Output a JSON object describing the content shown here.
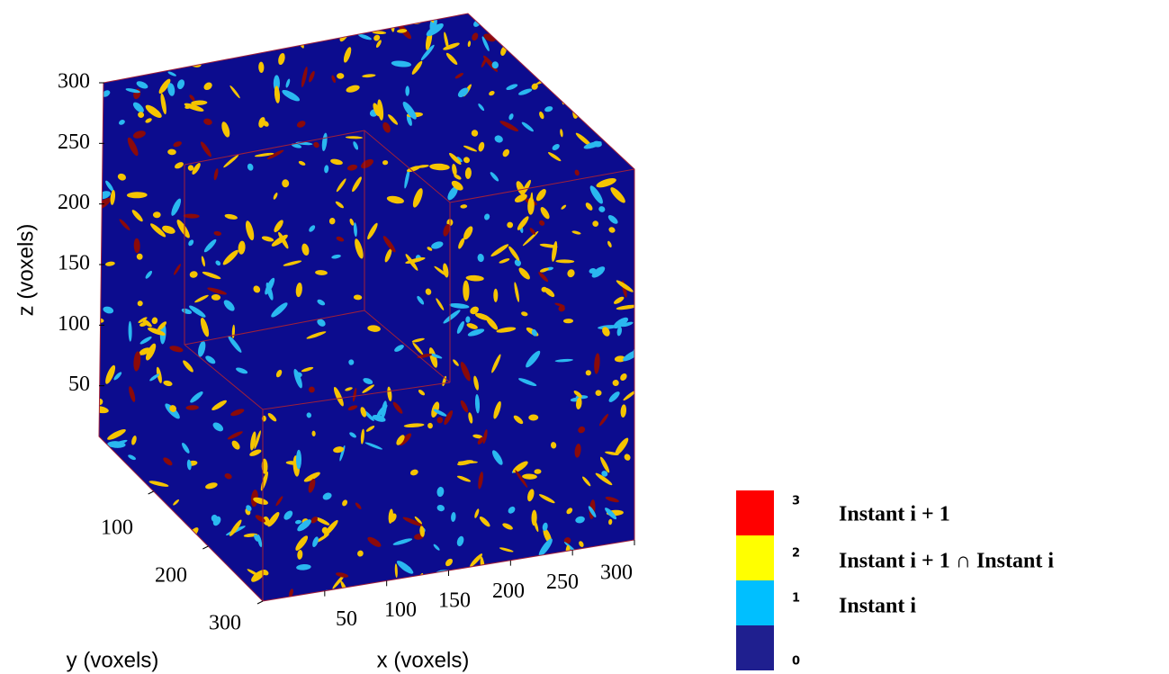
{
  "chart_data": {
    "type": "voxel",
    "xlabel": "x (voxels)",
    "ylabel": "y (voxels)",
    "zlabel": "z (voxels)",
    "xlim": [
      0,
      300
    ],
    "ylim": [
      0,
      300
    ],
    "zlim": [
      0,
      300
    ],
    "xticks": [
      50,
      100,
      150,
      200,
      250,
      300
    ],
    "yticks": [
      100,
      200,
      300
    ],
    "zticks": [
      50,
      100,
      150,
      200,
      250,
      300
    ],
    "colorbar": {
      "levels": [
        3,
        2,
        1,
        0
      ],
      "colors": [
        "#ff0000",
        "#ffff00",
        "#00bfff",
        "#1f1f8f"
      ],
      "labels": [
        "Instant i + 1",
        "Instant i + 1 ∩ Instant i",
        "Instant i",
        null
      ]
    }
  }
}
